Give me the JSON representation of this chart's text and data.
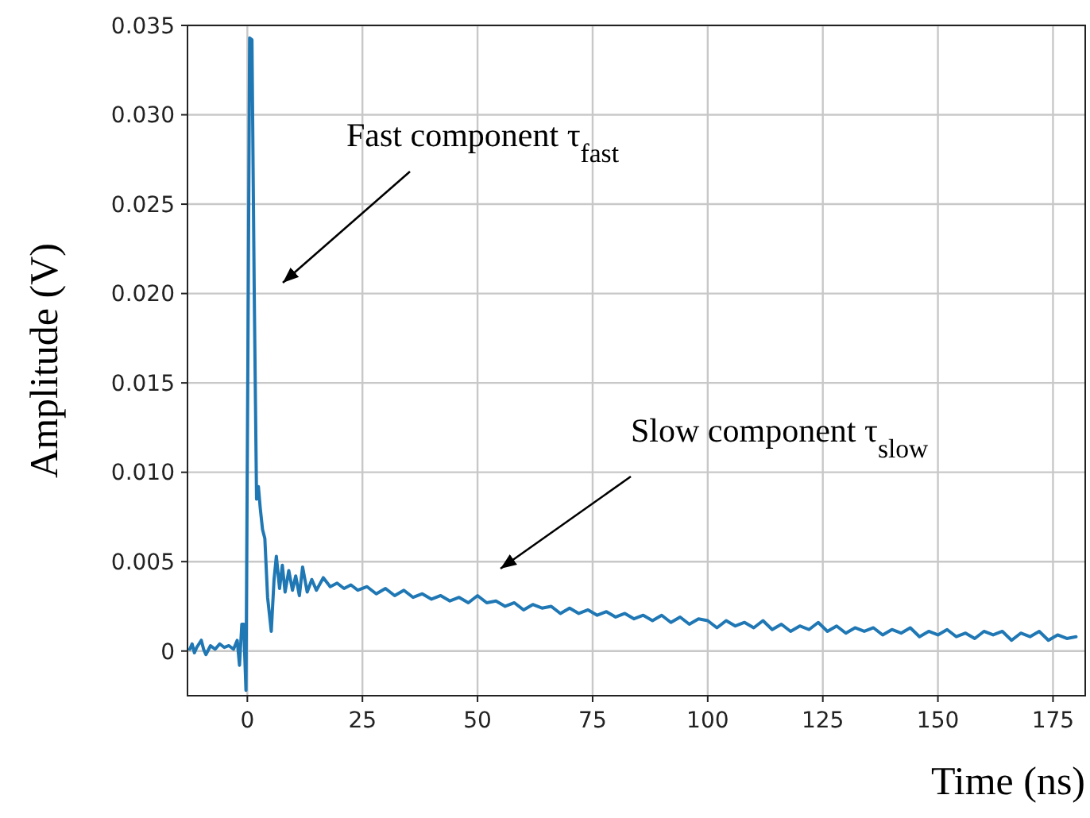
{
  "chart_data": {
    "type": "line",
    "xlabel": "Time (ns)",
    "ylabel": "Amplitude (V)",
    "xlim": [
      -13,
      182
    ],
    "ylim": [
      -0.0025,
      0.035
    ],
    "xticks": [
      0,
      25,
      50,
      75,
      100,
      125,
      150,
      175
    ],
    "yticks": [
      {
        "value": 0,
        "label": "0"
      },
      {
        "value": 0.005,
        "label": "0.005"
      },
      {
        "value": 0.01,
        "label": "0.010"
      },
      {
        "value": 0.015,
        "label": "0.015"
      },
      {
        "value": 0.02,
        "label": "0.020"
      },
      {
        "value": 0.025,
        "label": "0.025"
      },
      {
        "value": 0.03,
        "label": "0.030"
      },
      {
        "value": 0.035,
        "label": "0.035"
      }
    ],
    "grid": true,
    "annotations": [
      "Fast component τ$_{fast}$",
      "Slow component τ$_{slow}$"
    ],
    "series": [
      {
        "color": "#1f77b4",
        "x": [
          -12.5,
          -12,
          -11.5,
          -11,
          -10,
          -9.5,
          -9,
          -8,
          -7,
          -6,
          -5,
          -4,
          -3,
          -2.2,
          -1.7,
          -1.2,
          -0.8,
          -0.3,
          0.2,
          0.5,
          1.0,
          1.5,
          2.0,
          2.4,
          2.8,
          3.3,
          3.8,
          4.4,
          5.2,
          5.8,
          6.3,
          7,
          7.6,
          8.2,
          9,
          9.8,
          10.5,
          11.3,
          12,
          13,
          14,
          15,
          16.5,
          18,
          19.5,
          21,
          22.5,
          24,
          26,
          28,
          30,
          32,
          34,
          36,
          38,
          40,
          42,
          44,
          46,
          48,
          50,
          52,
          54,
          56,
          58,
          60,
          62,
          64,
          66,
          68,
          70,
          72,
          74,
          76,
          78,
          80,
          82,
          84,
          86,
          88,
          90,
          92,
          94,
          96,
          98,
          100,
          102,
          104,
          106,
          108,
          110,
          112,
          114,
          116,
          118,
          120,
          122,
          124,
          126,
          128,
          130,
          132,
          134,
          136,
          138,
          140,
          142,
          144,
          146,
          148,
          150,
          152,
          154,
          156,
          158,
          160,
          162,
          164,
          166,
          168,
          170,
          172,
          174,
          176,
          178,
          180
        ],
        "values": [
          0.0001,
          0.0004,
          -0.0001,
          0.0002,
          0.0006,
          0.0001,
          -0.0002,
          0.0003,
          0.0001,
          0.0004,
          0.0002,
          0.0003,
          0.0001,
          0.0006,
          -0.0008,
          0.0015,
          0.0015,
          -0.0022,
          0.02,
          0.0343,
          0.0342,
          0.02,
          0.0085,
          0.0092,
          0.008,
          0.0068,
          0.0063,
          0.003,
          0.0011,
          0.004,
          0.0053,
          0.0035,
          0.0048,
          0.0033,
          0.0045,
          0.0034,
          0.0042,
          0.0031,
          0.0047,
          0.0033,
          0.004,
          0.0034,
          0.0041,
          0.0036,
          0.0038,
          0.0035,
          0.0037,
          0.0034,
          0.0036,
          0.0032,
          0.0035,
          0.0031,
          0.0034,
          0.003,
          0.0032,
          0.0029,
          0.0031,
          0.0028,
          0.003,
          0.0027,
          0.0031,
          0.0027,
          0.0028,
          0.0025,
          0.0027,
          0.0023,
          0.0026,
          0.0024,
          0.0025,
          0.0021,
          0.0024,
          0.0021,
          0.0023,
          0.002,
          0.0022,
          0.0019,
          0.0021,
          0.0018,
          0.002,
          0.0017,
          0.002,
          0.0016,
          0.0019,
          0.0015,
          0.0018,
          0.0017,
          0.0013,
          0.0017,
          0.0014,
          0.0016,
          0.0013,
          0.0017,
          0.0012,
          0.0015,
          0.0011,
          0.0014,
          0.0012,
          0.0016,
          0.0011,
          0.0014,
          0.001,
          0.0013,
          0.0011,
          0.0013,
          0.0009,
          0.0012,
          0.001,
          0.0013,
          0.0008,
          0.0011,
          0.0009,
          0.0012,
          0.0008,
          0.001,
          0.0007,
          0.0011,
          0.0009,
          0.0011,
          0.0006,
          0.001,
          0.0008,
          0.0011,
          0.0006,
          0.0009,
          0.0007,
          0.0008
        ]
      }
    ]
  }
}
